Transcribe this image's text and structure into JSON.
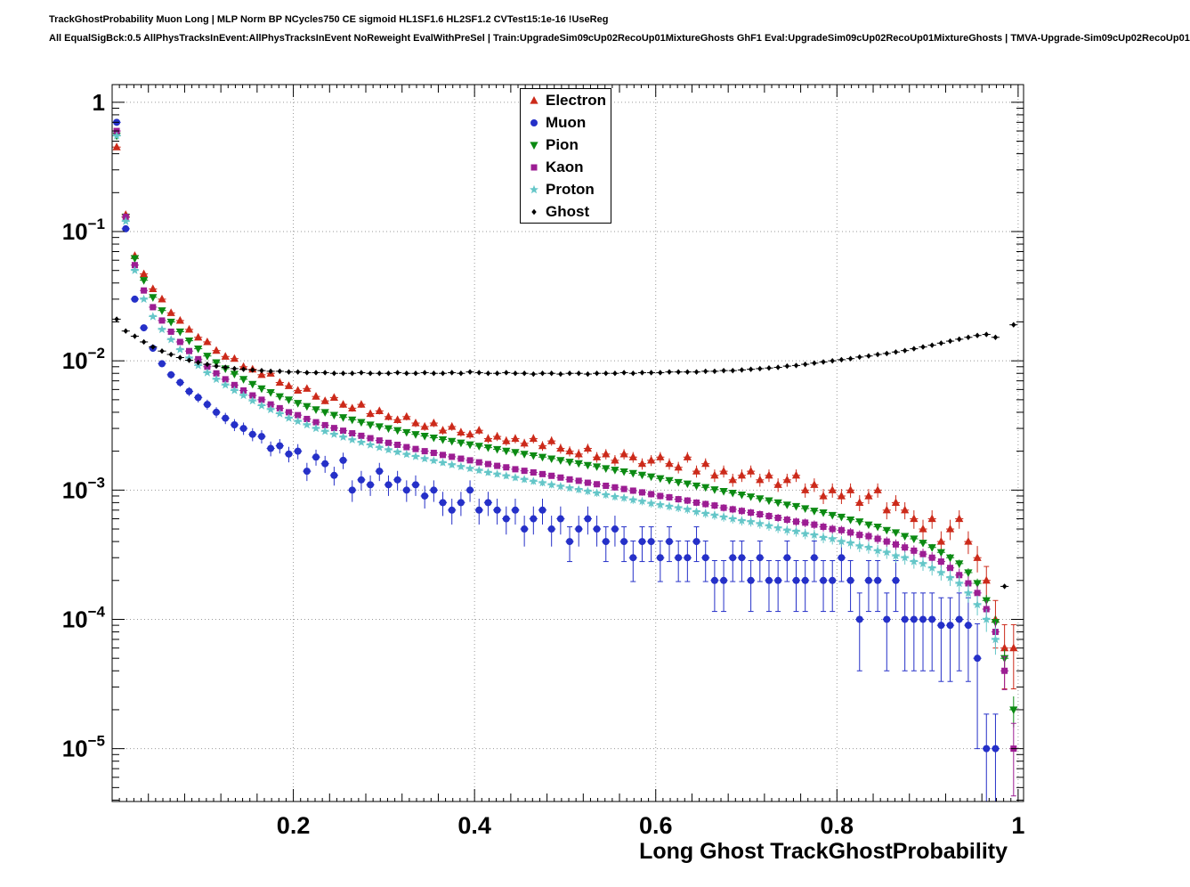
{
  "header": {
    "line1": "TrackGhostProbability Muon Long | MLP Norm BP NCycles750 CE sigmoid HL1SF1.6 HL2SF1.2 CVTest15:1e-16 !UseReg",
    "line2": "All EqualSigBck:0.5 AllPhysTracksInEvent:AllPhysTracksInEvent NoReweight EvalWithPreSel | Train:UpgradeSim09cUp02RecoUp01MixtureGhosts GhF1 Eval:UpgradeSim09cUp02RecoUp01MixtureGhosts | TMVA-Upgrade-Sim09cUp02RecoUp01"
  },
  "chart_data": {
    "type": "scatter",
    "title": "",
    "xlabel": "Long Ghost TrackGhostProbability",
    "ylabel": "",
    "yscale": "log",
    "grid": "dotted",
    "legend_position": "top-center",
    "xlim": [
      0,
      1.006
    ],
    "ylim": [
      3.9e-06,
      1.37
    ],
    "x_start": 0.005,
    "x_step": 0.01,
    "x_ticks": [
      {
        "v": 0.2,
        "t": "0.2"
      },
      {
        "v": 0.4,
        "t": "0.4"
      },
      {
        "v": 0.6,
        "t": "0.6"
      },
      {
        "v": 0.8,
        "t": "0.8"
      },
      {
        "v": 1.0,
        "t": "1"
      }
    ],
    "y_ticks": [
      {
        "v": 1,
        "t": "1",
        "e": ""
      },
      {
        "v": 0.1,
        "t": "10",
        "e": "−1"
      },
      {
        "v": 0.01,
        "t": "10",
        "e": "−2"
      },
      {
        "v": 0.001,
        "t": "10",
        "e": "−3"
      },
      {
        "v": 0.0001,
        "t": "10",
        "e": "−4"
      },
      {
        "v": 1e-05,
        "t": "10",
        "e": "−5"
      }
    ],
    "series": [
      {
        "name": "Electron",
        "marker": "triangle-up",
        "color": "#cc2a1a",
        "err_coeff": 0.004,
        "values": [
          0.45,
          0.135,
          0.065,
          0.047,
          0.036,
          0.03,
          0.0235,
          0.0205,
          0.0175,
          0.0152,
          0.014,
          0.012,
          0.0108,
          0.0104,
          0.009,
          0.0086,
          0.0078,
          0.008,
          0.0068,
          0.0064,
          0.0059,
          0.0061,
          0.0053,
          0.0049,
          0.0052,
          0.0046,
          0.0043,
          0.0046,
          0.0039,
          0.0041,
          0.0037,
          0.0035,
          0.0037,
          0.0033,
          0.0031,
          0.0033,
          0.0029,
          0.0031,
          0.0028,
          0.0027,
          0.0029,
          0.0025,
          0.0026,
          0.0024,
          0.0025,
          0.0023,
          0.0025,
          0.0022,
          0.0024,
          0.0021,
          0.002,
          0.0019,
          0.0021,
          0.0018,
          0.0019,
          0.0017,
          0.0019,
          0.0018,
          0.0016,
          0.0017,
          0.0018,
          0.0016,
          0.0015,
          0.0018,
          0.0014,
          0.0016,
          0.0013,
          0.0014,
          0.0012,
          0.0013,
          0.0014,
          0.0012,
          0.0013,
          0.0011,
          0.0012,
          0.0013,
          0.001,
          0.0011,
          0.0009,
          0.001,
          0.0009,
          0.001,
          0.0008,
          0.0009,
          0.001,
          0.0007,
          0.0008,
          0.0007,
          0.0006,
          0.0005,
          0.0006,
          0.0004,
          0.0005,
          0.0006,
          0.0004,
          0.0003,
          0.0002,
          0.0001,
          6e-05,
          6e-05
        ]
      },
      {
        "name": "Muon",
        "marker": "circle",
        "color": "#2530c8",
        "err_coeff": 0.006,
        "values": [
          0.7,
          0.105,
          0.03,
          0.018,
          0.0125,
          0.0095,
          0.0078,
          0.0068,
          0.0058,
          0.0052,
          0.0046,
          0.004,
          0.0036,
          0.0032,
          0.003,
          0.0027,
          0.0026,
          0.0021,
          0.0022,
          0.0019,
          0.002,
          0.0014,
          0.0018,
          0.0016,
          0.0013,
          0.0017,
          0.001,
          0.0012,
          0.0011,
          0.0014,
          0.0011,
          0.0012,
          0.001,
          0.0011,
          0.0009,
          0.001,
          0.0008,
          0.0007,
          0.0008,
          0.001,
          0.0007,
          0.0008,
          0.0007,
          0.0006,
          0.0007,
          0.0005,
          0.0006,
          0.0007,
          0.0005,
          0.0006,
          0.0004,
          0.0005,
          0.0006,
          0.0005,
          0.0004,
          0.0005,
          0.0004,
          0.0003,
          0.0004,
          0.0004,
          0.0003,
          0.0004,
          0.0003,
          0.0003,
          0.0004,
          0.0003,
          0.0002,
          0.0002,
          0.0003,
          0.0003,
          0.0002,
          0.0003,
          0.0002,
          0.0002,
          0.0003,
          0.0002,
          0.0002,
          0.0003,
          0.0002,
          0.0002,
          0.0003,
          0.0002,
          0.0001,
          0.0002,
          0.0002,
          0.0001,
          0.0002,
          0.0001,
          0.0001,
          0.0001,
          0.0001,
          9e-05,
          9e-05,
          0.0001,
          9e-05,
          5e-05,
          1e-05,
          1e-05,
          null,
          null
        ]
      },
      {
        "name": "Pion",
        "marker": "triangle-down",
        "color": "#0b8a12",
        "err_coeff": 0.0012,
        "values": [
          0.55,
          0.13,
          0.062,
          0.042,
          0.031,
          0.0245,
          0.02,
          0.0168,
          0.0143,
          0.0124,
          0.0109,
          0.0097,
          0.0087,
          0.0079,
          0.0072,
          0.0066,
          0.0061,
          0.0057,
          0.0053,
          0.005,
          0.0047,
          0.00445,
          0.0042,
          0.004,
          0.0038,
          0.00365,
          0.0035,
          0.00335,
          0.0032,
          0.0031,
          0.003,
          0.0029,
          0.0028,
          0.0027,
          0.00262,
          0.00254,
          0.00246,
          0.00239,
          0.00232,
          0.00225,
          0.00219,
          0.00213,
          0.00207,
          0.00201,
          0.00196,
          0.0019,
          0.00185,
          0.0018,
          0.00175,
          0.0017,
          0.00165,
          0.00161,
          0.00156,
          0.00152,
          0.00147,
          0.00143,
          0.00139,
          0.00135,
          0.00131,
          0.00127,
          0.00123,
          0.00119,
          0.00115,
          0.00112,
          0.00108,
          0.00105,
          0.00101,
          0.00098,
          0.00095,
          0.00092,
          0.00089,
          0.00086,
          0.00083,
          0.0008,
          0.00077,
          0.00075,
          0.00072,
          0.00069,
          0.00067,
          0.00064,
          0.00062,
          0.00059,
          0.00057,
          0.00054,
          0.00052,
          0.00049,
          0.00047,
          0.00044,
          0.00042,
          0.00039,
          0.00036,
          0.00033,
          0.0003,
          0.00027,
          0.00023,
          0.00019,
          0.00014,
          9.5e-05,
          5e-05,
          2e-05
        ]
      },
      {
        "name": "Kaon",
        "marker": "square",
        "color": "#9c1d93",
        "err_coeff": 0.0018,
        "values": [
          0.6,
          0.13,
          0.055,
          0.035,
          0.026,
          0.0205,
          0.0168,
          0.014,
          0.0119,
          0.0103,
          0.009,
          0.008,
          0.0072,
          0.0065,
          0.0059,
          0.0054,
          0.005,
          0.0046,
          0.0043,
          0.004,
          0.0038,
          0.00355,
          0.00335,
          0.00318,
          0.00302,
          0.00288,
          0.00275,
          0.00263,
          0.00252,
          0.00242,
          0.00232,
          0.00224,
          0.00215,
          0.00208,
          0.002,
          0.00194,
          0.00187,
          0.00181,
          0.00175,
          0.0017,
          0.00164,
          0.00159,
          0.00154,
          0.0015,
          0.00145,
          0.00141,
          0.00137,
          0.00133,
          0.00129,
          0.00125,
          0.00121,
          0.00118,
          0.00114,
          0.00111,
          0.00108,
          0.00105,
          0.00102,
          0.00099,
          0.00096,
          0.00093,
          0.0009,
          0.00088,
          0.00085,
          0.00083,
          0.0008,
          0.00078,
          0.00076,
          0.00073,
          0.00071,
          0.00069,
          0.00067,
          0.00065,
          0.00063,
          0.00061,
          0.00059,
          0.00057,
          0.00056,
          0.00054,
          0.00052,
          0.0005,
          0.00049,
          0.00047,
          0.00045,
          0.00044,
          0.00042,
          0.0004,
          0.00038,
          0.00036,
          0.00034,
          0.00032,
          0.0003,
          0.00028,
          0.00025,
          0.00022,
          0.00019,
          0.00016,
          0.00012,
          8e-05,
          4e-05,
          1e-05
        ]
      },
      {
        "name": "Proton",
        "marker": "star",
        "color": "#64c6c8",
        "err_coeff": 0.002,
        "values": [
          0.55,
          0.12,
          0.05,
          0.03,
          0.022,
          0.0175,
          0.0146,
          0.0122,
          0.0105,
          0.0092,
          0.0081,
          0.0072,
          0.0065,
          0.0059,
          0.0054,
          0.0049,
          0.0045,
          0.0042,
          0.0039,
          0.0036,
          0.0034,
          0.0032,
          0.003,
          0.00285,
          0.0027,
          0.00257,
          0.00245,
          0.00234,
          0.00224,
          0.00214,
          0.00205,
          0.00197,
          0.00189,
          0.00182,
          0.00175,
          0.00169,
          0.00163,
          0.00157,
          0.00152,
          0.00147,
          0.00142,
          0.00137,
          0.00133,
          0.00129,
          0.00125,
          0.00121,
          0.00117,
          0.00114,
          0.0011,
          0.00107,
          0.00104,
          0.00101,
          0.00098,
          0.00095,
          0.00092,
          0.00089,
          0.00087,
          0.00084,
          0.00082,
          0.00079,
          0.00077,
          0.00075,
          0.00073,
          0.00071,
          0.00068,
          0.00066,
          0.00064,
          0.00062,
          0.0006,
          0.00058,
          0.00057,
          0.00055,
          0.00053,
          0.00051,
          0.00049,
          0.00048,
          0.00046,
          0.00045,
          0.00043,
          0.00042,
          0.0004,
          0.00039,
          0.00037,
          0.00036,
          0.00034,
          0.00033,
          0.00031,
          0.0003,
          0.00028,
          0.00027,
          0.00025,
          0.00023,
          0.00021,
          0.00019,
          0.00016,
          0.00013,
          0.0001,
          7e-05,
          null,
          null
        ]
      },
      {
        "name": "Ghost",
        "marker": "diamond",
        "color": "#000000",
        "err_coeff": 0.0004,
        "values": [
          0.021,
          0.017,
          0.0155,
          0.014,
          0.0128,
          0.0119,
          0.0112,
          0.0106,
          0.0101,
          0.0097,
          0.0094,
          0.0091,
          0.0089,
          0.0087,
          0.0086,
          0.0085,
          0.0084,
          0.0083,
          0.0083,
          0.0082,
          0.0082,
          0.0081,
          0.0081,
          0.0081,
          0.008,
          0.008,
          0.008,
          0.0081,
          0.008,
          0.008,
          0.008,
          0.0081,
          0.008,
          0.008,
          0.0081,
          0.008,
          0.008,
          0.0081,
          0.008,
          0.0082,
          0.0081,
          0.008,
          0.008,
          0.0081,
          0.008,
          0.008,
          0.0079,
          0.008,
          0.008,
          0.0079,
          0.008,
          0.008,
          0.0079,
          0.008,
          0.008,
          0.008,
          0.0081,
          0.008,
          0.0081,
          0.0081,
          0.0081,
          0.0082,
          0.0082,
          0.0082,
          0.0082,
          0.0083,
          0.0083,
          0.0084,
          0.0084,
          0.0085,
          0.0086,
          0.0087,
          0.0088,
          0.0089,
          0.0091,
          0.0092,
          0.0094,
          0.0096,
          0.0098,
          0.01,
          0.0102,
          0.0104,
          0.0107,
          0.0109,
          0.0112,
          0.0114,
          0.0117,
          0.012,
          0.0124,
          0.0128,
          0.0132,
          0.0137,
          0.0142,
          0.0147,
          0.0152,
          0.0157,
          0.016,
          0.0152,
          0.00018,
          0.019
        ]
      }
    ]
  }
}
